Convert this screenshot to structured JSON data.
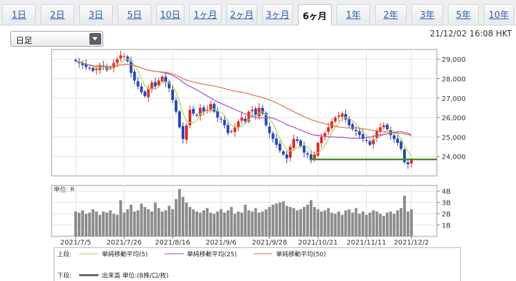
{
  "tabs": [
    {
      "label": "1日",
      "active": false
    },
    {
      "label": "2日",
      "active": false
    },
    {
      "label": "3日",
      "active": false
    },
    {
      "label": "5日",
      "active": false
    },
    {
      "label": "10日",
      "active": false
    },
    {
      "label": "1ヶ月",
      "active": false
    },
    {
      "label": "2ヶ月",
      "active": false
    },
    {
      "label": "3ヶ月",
      "active": false
    },
    {
      "label": "6ヶ月",
      "active": true
    },
    {
      "label": "1年",
      "active": false
    },
    {
      "label": "2年",
      "active": false
    },
    {
      "label": "3年",
      "active": false
    },
    {
      "label": "5年",
      "active": false
    },
    {
      "label": "10年",
      "active": false
    }
  ],
  "period_select": {
    "value": "日足"
  },
  "timestamp": "21/12/02 16:08 HKT",
  "chart_data": {
    "type": "candlestick",
    "price_axis": {
      "ticks": [
        "29,000",
        "28,000",
        "27,000",
        "26,000",
        "25,000",
        "24,000"
      ],
      "range": [
        23000,
        29500
      ]
    },
    "volume_axis": {
      "unit_label": "単位: B",
      "ticks": [
        "4B",
        "3B",
        "2B",
        "1B"
      ],
      "range": [
        0,
        4.5
      ]
    },
    "x_ticks": [
      "2021/7/5",
      "2021/7/26",
      "2021/8/16",
      "2021/9/6",
      "2021/9/28",
      "2021/10/21",
      "2021/11/11",
      "2021/12/2"
    ],
    "support_line": 23850,
    "closes": [
      28900,
      28800,
      28700,
      28600,
      28550,
      28400,
      28500,
      28700,
      28600,
      28450,
      28600,
      28800,
      29000,
      29200,
      29150,
      28900,
      28300,
      27900,
      27600,
      27300,
      27100,
      27500,
      27800,
      27600,
      27900,
      28100,
      27800,
      27500,
      26900,
      26300,
      25500,
      24900,
      25600,
      26400,
      26200,
      26100,
      26500,
      26300,
      26400,
      26700,
      26300,
      26000,
      25900,
      25600,
      25200,
      25300,
      25500,
      25800,
      26000,
      25800,
      26300,
      26400,
      26100,
      26500,
      26200,
      25600,
      25200,
      24900,
      24600,
      24300,
      24100,
      23900,
      24500,
      24900,
      24800,
      24500,
      24200,
      24100,
      23800,
      24100,
      24700,
      25000,
      25200,
      25500,
      25800,
      26000,
      26100,
      26200,
      25900,
      25600,
      25400,
      25300,
      25100,
      24900,
      24800,
      24600,
      24900,
      25300,
      25500,
      25600,
      25400,
      25100,
      24900,
      24700,
      24400,
      23700,
      23600,
      23800
    ],
    "volume": [
      2.2,
      2.1,
      2.3,
      2.0,
      2.1,
      2.4,
      2.2,
      1.9,
      2.2,
      2.1,
      2.3,
      2.0,
      1.9,
      3.2,
      2.1,
      2.4,
      2.8,
      2.2,
      2.3,
      2.9,
      2.6,
      2.4,
      2.2,
      3.0,
      2.5,
      2.2,
      2.3,
      2.7,
      2.4,
      3.3,
      4.2,
      3.5,
      3.0,
      2.6,
      2.4,
      2.2,
      2.1,
      2.3,
      2.5,
      2.1,
      2.0,
      2.2,
      2.4,
      2.1,
      2.3,
      2.6,
      2.0,
      2.2,
      2.1,
      2.8,
      2.3,
      2.2,
      2.5,
      2.1,
      2.2,
      2.4,
      2.6,
      2.8,
      2.9,
      3.0,
      3.1,
      2.7,
      2.6,
      2.5,
      2.3,
      2.4,
      2.6,
      2.8,
      3.2,
      2.6,
      2.4,
      2.2,
      2.3,
      2.5,
      2.1,
      2.0,
      2.2,
      1.9,
      2.3,
      2.4,
      2.1,
      2.5,
      2.0,
      2.2,
      1.9,
      2.1,
      2.3,
      2.2,
      2.0,
      1.8,
      2.1,
      2.2,
      2.0,
      2.3,
      2.5,
      3.6,
      2.2,
      2.4
    ],
    "series_colors": {
      "up": "#dd2a2a",
      "down": "#2447b8",
      "ma5": "#b6d35a",
      "ma25": "#b04fd0",
      "ma50": "#e07a55",
      "support": "#4a8a2a",
      "volume": "#8c8c8c"
    }
  },
  "legend": {
    "upper_label": "上段:",
    "lower_label": "下段:",
    "items": [
      {
        "label": "単純移動平均(5)",
        "color": "#b6d35a"
      },
      {
        "label": "単純移動平均(25)",
        "color": "#b04fd0"
      },
      {
        "label": "単純移動平均(50)",
        "color": "#e07a55"
      }
    ],
    "volume_item": {
      "label": "出来高 単位:(B株/口/枚)",
      "color": "#666666"
    }
  }
}
